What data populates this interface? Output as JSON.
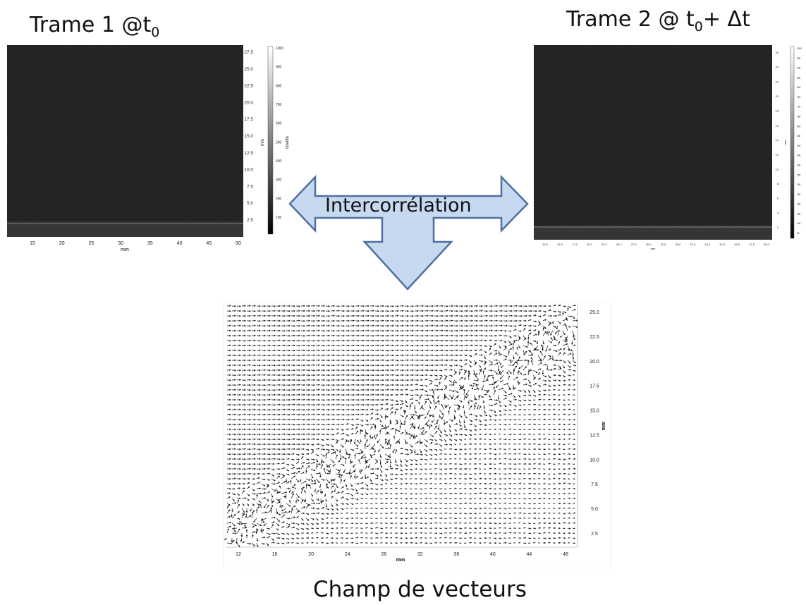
{
  "frame1": {
    "title_main": "Trame 1 @t",
    "title_sub": "0",
    "xlabel": "mm",
    "ylabel": "mm",
    "colorbar_label": "counts",
    "x_ticks": [
      "15",
      "20",
      "25",
      "30",
      "35",
      "40",
      "45",
      "50"
    ],
    "y_ticks": [
      "27.5",
      "25.0",
      "22.5",
      "20.0",
      "17.5",
      "15.0",
      "12.5",
      "10.0",
      "7.5",
      "5.0",
      "2.5"
    ],
    "cb_ticks": [
      "1000",
      "900",
      "800",
      "700",
      "600",
      "500",
      "400",
      "300",
      "200",
      "100"
    ]
  },
  "frame2": {
    "title_pre": "Trame 2 @ t",
    "title_sub": "0",
    "title_post": "+ Δt",
    "xlabel": "mm",
    "ylabel": "mm",
    "x_ticks": [
      "12.5",
      "15.0",
      "17.5",
      "20.0",
      "22.5",
      "25.0",
      "27.5",
      "30.0",
      "32.5",
      "35.0",
      "37.5",
      "40.0",
      "42.5",
      "45.0",
      "47.5",
      "50.0"
    ],
    "y_ticks": [
      "26",
      "24",
      "22",
      "20",
      "18",
      "16",
      "14",
      "12",
      "10",
      "8",
      "6",
      "4",
      "2"
    ],
    "cb_ticks": [
      "1000",
      "950",
      "900",
      "850",
      "800",
      "750",
      "700",
      "650",
      "600",
      "550",
      "500",
      "450",
      "400",
      "350",
      "300",
      "250",
      "200",
      "150",
      "100",
      "50"
    ]
  },
  "arrow": {
    "label": "Intercorrélation",
    "fill_color": "#c6d9f1",
    "stroke_color": "#4f6fa0"
  },
  "vectors": {
    "caption": "Champ de vecteurs",
    "xlabel": "mm",
    "ylabel": "mm",
    "x_ticks": [
      "12",
      "16",
      "20",
      "24",
      "28",
      "32",
      "36",
      "40",
      "44",
      "48"
    ],
    "y_ticks": [
      "25.0",
      "22.5",
      "20.0",
      "17.5",
      "15.0",
      "12.5",
      "10.0",
      "7.5",
      "5.0",
      "2.5"
    ]
  }
}
